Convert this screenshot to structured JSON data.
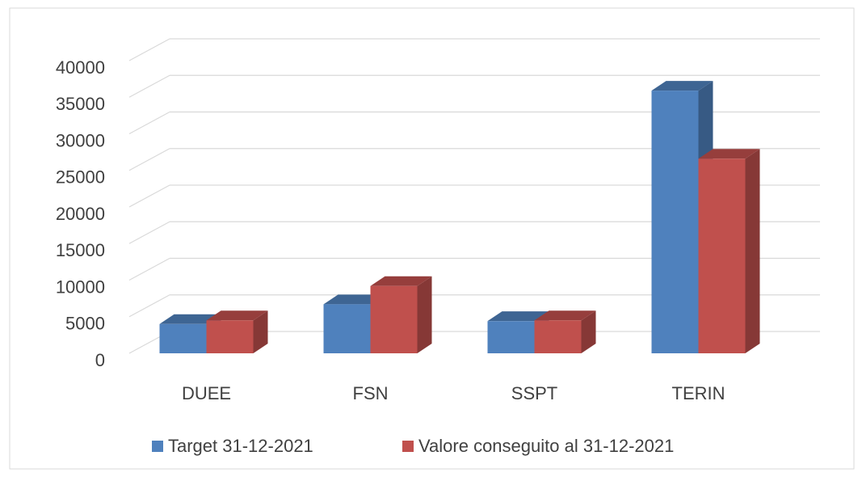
{
  "chart_data": {
    "type": "bar3d",
    "categories": [
      "DUEE",
      "FSN",
      "SSPT",
      "TERIN"
    ],
    "series": [
      {
        "name": "Target 31-12-2021",
        "color": "#4f81bd",
        "values": [
          4000,
          6700,
          4400,
          35900
        ]
      },
      {
        "name": "Valore conseguito al 31-12-2021",
        "color": "#c0504d",
        "values": [
          4500,
          9200,
          4500,
          26600
        ]
      }
    ],
    "ylim": [
      0,
      40000
    ],
    "yticks": [
      0,
      5000,
      10000,
      15000,
      20000,
      25000,
      30000,
      35000,
      40000
    ],
    "grid": true,
    "legend": "bottom"
  }
}
